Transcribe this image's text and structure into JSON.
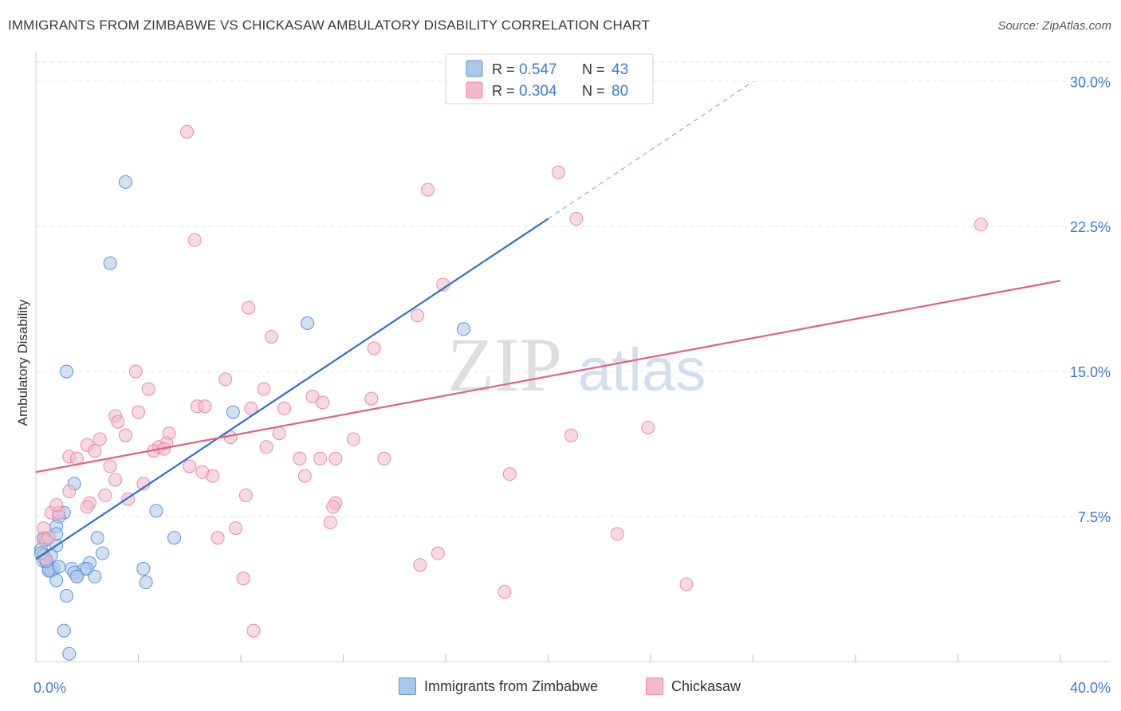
{
  "header": {
    "title": "IMMIGRANTS FROM ZIMBABWE VS CHICKASAW AMBULATORY DISABILITY CORRELATION CHART",
    "source": "Source: ZipAtlas.com"
  },
  "watermark": {
    "zip": "ZIP",
    "atlas": "atlas"
  },
  "colors": {
    "blue_fill": "#a9c8ee",
    "blue_stroke": "#5e93d6",
    "blue_line": "#2f6fcf",
    "pink_fill": "#f5b8cc",
    "pink_stroke": "#e88aa8",
    "pink_line": "#e0608c",
    "tick_label": "#3d7bd0",
    "grid": "#e3e3e3"
  },
  "legend_top": [
    {
      "r_label": "R = ",
      "r_value": "0.547",
      "n_label": "N = ",
      "n_value": "43",
      "series": "blue"
    },
    {
      "r_label": "R = ",
      "r_value": "0.304",
      "n_label": "N = ",
      "n_value": "80",
      "series": "pink"
    }
  ],
  "legend_bottom": [
    {
      "label": "Immigrants from Zimbabwe",
      "series": "blue"
    },
    {
      "label": "Chickasaw",
      "series": "pink"
    }
  ],
  "chart_data": {
    "type": "scatter",
    "title": "IMMIGRANTS FROM ZIMBABWE VS CHICKASAW AMBULATORY DISABILITY CORRELATION CHART",
    "xlabel": "",
    "ylabel": "Ambulatory Disability",
    "xlim": [
      0,
      40
    ],
    "ylim": [
      0,
      31
    ],
    "x_tick_labels": [
      {
        "value": 0,
        "label": "0.0%"
      },
      {
        "value": 40,
        "label": "40.0%"
      }
    ],
    "y_tick_labels": [
      {
        "value": 7.5,
        "label": "7.5%"
      },
      {
        "value": 15,
        "label": "15.0%"
      },
      {
        "value": 22.5,
        "label": "22.5%"
      },
      {
        "value": 30,
        "label": "30.0%"
      }
    ],
    "x_minor_ticks": [
      4,
      8,
      12,
      16,
      20,
      24,
      28,
      32,
      36,
      40
    ],
    "grid": true,
    "series": [
      {
        "name": "Immigrants from Zimbabwe",
        "color": "blue",
        "R": 0.547,
        "N": 43,
        "trend": {
          "x": [
            0,
            20
          ],
          "y": [
            5.3,
            22.9
          ]
        },
        "trend_dashed": {
          "x": [
            20,
            28
          ],
          "y": [
            22.9,
            30.0
          ]
        },
        "points": [
          [
            3.5,
            24.8
          ],
          [
            2.9,
            20.6
          ],
          [
            10.6,
            17.5
          ],
          [
            16.7,
            17.2
          ],
          [
            1.2,
            15.0
          ],
          [
            7.7,
            12.9
          ],
          [
            1.5,
            9.2
          ],
          [
            1.1,
            7.7
          ],
          [
            0.9,
            7.5
          ],
          [
            4.7,
            7.8
          ],
          [
            0.8,
            7.0
          ],
          [
            0.8,
            6.6
          ],
          [
            0.3,
            6.4
          ],
          [
            0.4,
            6.3
          ],
          [
            0.8,
            6.0
          ],
          [
            5.4,
            6.4
          ],
          [
            2.4,
            6.4
          ],
          [
            0.2,
            5.8
          ],
          [
            0.3,
            5.5
          ],
          [
            0.6,
            5.5
          ],
          [
            2.6,
            5.6
          ],
          [
            0.3,
            5.2
          ],
          [
            2.1,
            5.1
          ],
          [
            1.9,
            4.8
          ],
          [
            0.5,
            4.8
          ],
          [
            0.7,
            4.8
          ],
          [
            0.6,
            4.7
          ],
          [
            1.4,
            4.8
          ],
          [
            2.0,
            4.8
          ],
          [
            1.5,
            4.6
          ],
          [
            0.5,
            4.7
          ],
          [
            1.6,
            4.4
          ],
          [
            2.3,
            4.4
          ],
          [
            4.2,
            4.8
          ],
          [
            0.8,
            4.2
          ],
          [
            4.3,
            4.1
          ],
          [
            1.2,
            3.4
          ],
          [
            1.1,
            1.6
          ],
          [
            1.3,
            0.4
          ],
          [
            1.6,
            4.4
          ],
          [
            0.9,
            4.9
          ],
          [
            0.4,
            5.2
          ],
          [
            0.2,
            5.6
          ]
        ]
      },
      {
        "name": "Chickasaw",
        "color": "pink",
        "R": 0.304,
        "N": 80,
        "trend": {
          "x": [
            0,
            40
          ],
          "y": [
            9.8,
            19.7
          ]
        },
        "points": [
          [
            16.4,
            29.5
          ],
          [
            5.9,
            27.4
          ],
          [
            20.4,
            25.3
          ],
          [
            15.3,
            24.4
          ],
          [
            21.1,
            22.9
          ],
          [
            36.9,
            22.6
          ],
          [
            6.2,
            21.8
          ],
          [
            15.9,
            19.5
          ],
          [
            8.3,
            18.3
          ],
          [
            14.9,
            17.9
          ],
          [
            9.2,
            16.8
          ],
          [
            13.2,
            16.2
          ],
          [
            3.9,
            15.0
          ],
          [
            7.4,
            14.6
          ],
          [
            4.4,
            14.1
          ],
          [
            8.9,
            14.1
          ],
          [
            10.8,
            13.7
          ],
          [
            13.1,
            13.6
          ],
          [
            11.2,
            13.4
          ],
          [
            6.3,
            13.2
          ],
          [
            6.6,
            13.2
          ],
          [
            8.4,
            13.1
          ],
          [
            9.7,
            13.1
          ],
          [
            4.0,
            12.9
          ],
          [
            3.1,
            12.7
          ],
          [
            3.2,
            12.4
          ],
          [
            23.9,
            12.1
          ],
          [
            20.9,
            11.7
          ],
          [
            9.5,
            11.8
          ],
          [
            7.6,
            11.6
          ],
          [
            3.5,
            11.7
          ],
          [
            5.2,
            11.8
          ],
          [
            12.4,
            11.5
          ],
          [
            2.5,
            11.5
          ],
          [
            5.1,
            11.3
          ],
          [
            4.8,
            11.1
          ],
          [
            2.0,
            11.2
          ],
          [
            9.0,
            11.1
          ],
          [
            2.3,
            10.9
          ],
          [
            4.6,
            10.9
          ],
          [
            5.0,
            11.0
          ],
          [
            10.3,
            10.5
          ],
          [
            11.1,
            10.5
          ],
          [
            11.7,
            10.5
          ],
          [
            13.6,
            10.5
          ],
          [
            1.3,
            10.6
          ],
          [
            1.6,
            10.5
          ],
          [
            2.9,
            10.1
          ],
          [
            6.0,
            10.1
          ],
          [
            6.5,
            9.8
          ],
          [
            6.9,
            9.6
          ],
          [
            10.5,
            9.6
          ],
          [
            18.5,
            9.7
          ],
          [
            3.1,
            9.4
          ],
          [
            4.2,
            9.2
          ],
          [
            1.3,
            8.8
          ],
          [
            2.7,
            8.6
          ],
          [
            3.6,
            8.4
          ],
          [
            8.2,
            8.6
          ],
          [
            11.7,
            8.2
          ],
          [
            11.6,
            8.0
          ],
          [
            0.6,
            7.7
          ],
          [
            0.9,
            7.7
          ],
          [
            2.1,
            8.2
          ],
          [
            2.0,
            8.0
          ],
          [
            0.8,
            8.1
          ],
          [
            11.5,
            7.2
          ],
          [
            0.3,
            6.9
          ],
          [
            7.8,
            6.9
          ],
          [
            22.7,
            6.6
          ],
          [
            7.1,
            6.4
          ],
          [
            0.3,
            6.3
          ],
          [
            0.5,
            6.4
          ],
          [
            15.7,
            5.6
          ],
          [
            15.0,
            5.0
          ],
          [
            8.1,
            4.3
          ],
          [
            18.3,
            3.6
          ],
          [
            25.4,
            4.0
          ],
          [
            8.5,
            1.6
          ],
          [
            0.4,
            5.3
          ]
        ]
      }
    ]
  }
}
